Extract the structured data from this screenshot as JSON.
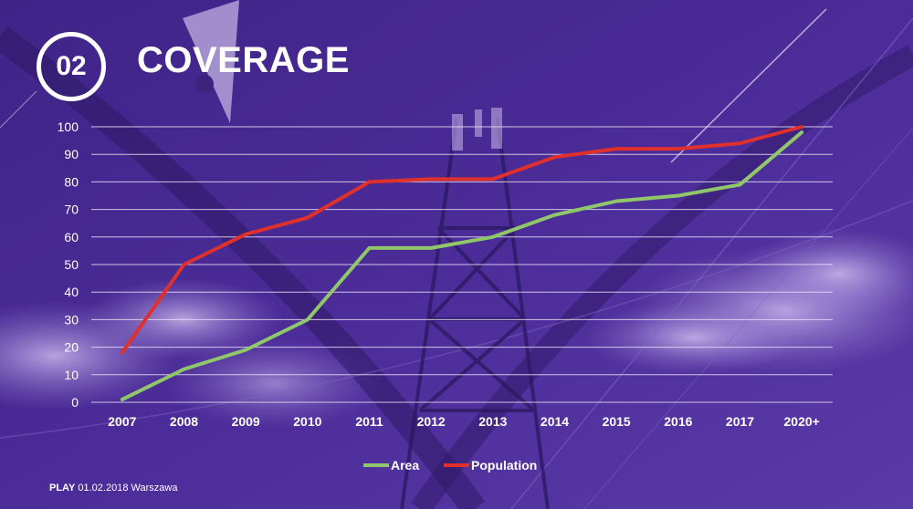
{
  "header": {
    "number": "02",
    "title": "COVERAGE"
  },
  "footer": {
    "brand": "PLAY",
    "text": "01.02.2018 Warszawa"
  },
  "colors": {
    "area": "#8fc76a",
    "population": "#e0302c",
    "background": "#4a2a94"
  },
  "chart_data": {
    "type": "line",
    "title": "",
    "xlabel": "",
    "ylabel": "",
    "categories": [
      "2007",
      "2008",
      "2009",
      "2010",
      "2011",
      "2012",
      "2013",
      "2014",
      "2015",
      "2016",
      "2017",
      "2020+"
    ],
    "ylim": [
      0,
      100
    ],
    "yticks": [
      0,
      10,
      20,
      30,
      40,
      50,
      60,
      70,
      80,
      90,
      100
    ],
    "grid": true,
    "legend_position": "bottom",
    "series": [
      {
        "name": "Area",
        "color": "#8fc76a",
        "values": [
          1,
          12,
          19,
          30,
          56,
          56,
          60,
          68,
          73,
          75,
          79,
          98
        ]
      },
      {
        "name": "Population",
        "color": "#e0302c",
        "values": [
          18,
          50,
          61,
          67,
          80,
          81,
          81,
          89,
          92,
          92,
          94,
          100
        ]
      }
    ]
  }
}
